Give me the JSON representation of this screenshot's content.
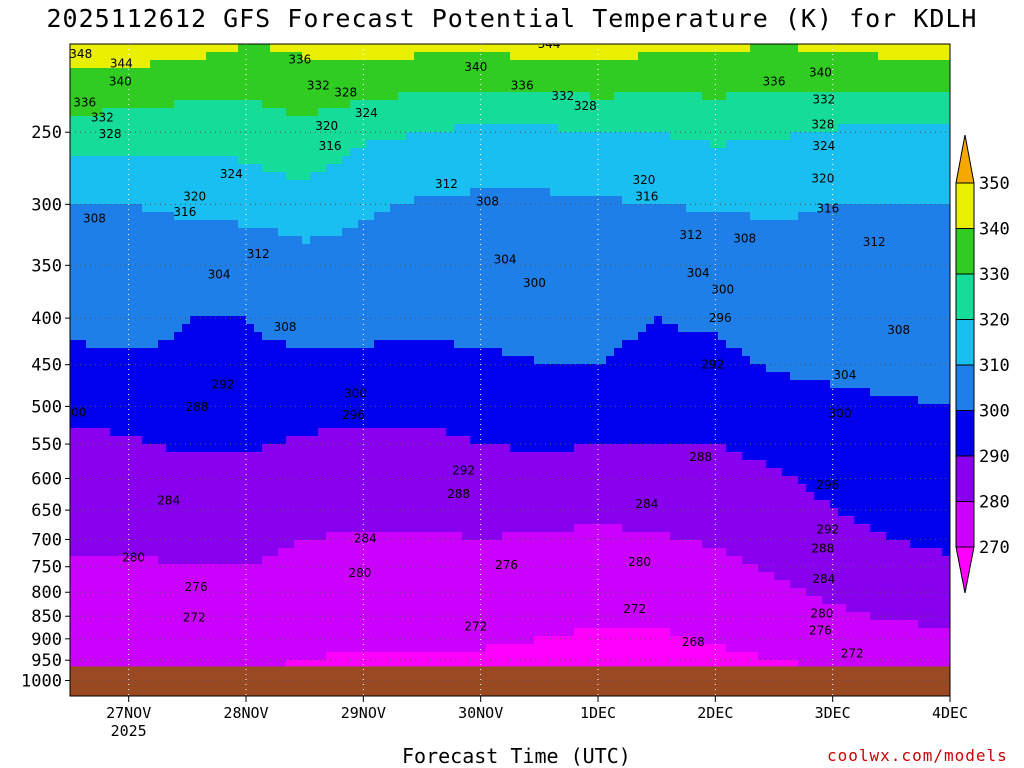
{
  "title": "2025112612 GFS Forecast Potential Temperature (K) for KDLH",
  "xlabel": "Forecast Time (UTC)",
  "credit": "coolwx.com/models",
  "chart_data": {
    "type": "heatmap",
    "title": "2025112612 GFS Forecast Potential Temperature (K) for KDLH",
    "xlabel": "Forecast Time (UTC)",
    "ylabel": "",
    "x_ticks": [
      "27NOV",
      "28NOV",
      "29NOV",
      "30NOV",
      "1DEC",
      "2DEC",
      "3DEC",
      "4DEC"
    ],
    "x_subtick": "2025",
    "xlim_hours": [
      12,
      192
    ],
    "x_tick_hours": [
      24,
      48,
      72,
      96,
      120,
      144,
      168,
      192
    ],
    "y_ticks": [
      250,
      300,
      350,
      400,
      450,
      500,
      550,
      600,
      650,
      700,
      750,
      800,
      850,
      900,
      950,
      1000
    ],
    "ylim": [
      200,
      1040
    ],
    "y_scale": "log",
    "grid": true,
    "colorbar": {
      "levels": [
        270,
        280,
        290,
        300,
        310,
        320,
        330,
        340,
        350
      ],
      "colors": [
        "#ff00ff",
        "#cc00ff",
        "#8800ee",
        "#0000ee",
        "#1f7fe8",
        "#18bff0",
        "#15dd99",
        "#30cc22",
        "#e8f000",
        "#f5a800"
      ]
    },
    "ground_color": "#9a4a22",
    "times": [
      12,
      24,
      36,
      48,
      60,
      72,
      84,
      96,
      108,
      120,
      132,
      144,
      156,
      168,
      180,
      192
    ],
    "pressure_levels": [
      1000,
      950,
      900,
      850,
      800,
      750,
      700,
      650,
      600,
      550,
      500,
      450,
      400,
      350,
      300,
      250,
      200
    ],
    "values": [
      [
        270,
        270,
        270,
        270,
        268,
        267,
        268,
        268,
        267,
        266,
        266,
        267,
        268,
        269,
        270,
        271
      ],
      [
        271,
        271,
        271,
        271,
        270,
        269,
        269,
        269,
        268,
        267,
        267,
        268,
        270,
        271,
        272,
        273
      ],
      [
        273,
        273,
        273,
        273,
        272,
        271,
        271,
        271,
        270,
        269,
        269,
        271,
        272,
        274,
        276,
        277
      ],
      [
        275,
        275,
        276,
        276,
        274,
        273,
        273,
        273,
        272,
        271,
        271,
        273,
        275,
        278,
        281,
        283
      ],
      [
        277,
        277,
        278,
        278,
        276,
        275,
        275,
        275,
        274,
        273,
        274,
        276,
        278,
        282,
        285,
        287
      ],
      [
        279,
        279,
        280,
        280,
        278,
        277,
        277,
        277,
        276,
        275,
        276,
        278,
        281,
        285,
        288,
        289
      ],
      [
        281,
        281,
        282,
        282,
        280,
        279,
        279,
        280,
        279,
        278,
        279,
        281,
        283,
        288,
        290,
        291
      ],
      [
        283,
        284,
        285,
        285,
        283,
        282,
        282,
        283,
        283,
        282,
        283,
        284,
        286,
        290,
        292,
        293
      ],
      [
        285,
        286,
        288,
        288,
        286,
        285,
        285,
        286,
        287,
        286,
        286,
        287,
        289,
        292,
        294,
        295
      ],
      [
        288,
        289,
        291,
        291,
        289,
        288,
        288,
        290,
        291,
        290,
        290,
        290,
        292,
        295,
        296,
        297
      ],
      [
        292,
        293,
        295,
        295,
        293,
        292,
        292,
        294,
        296,
        295,
        294,
        293,
        296,
        298,
        299,
        300
      ],
      [
        297,
        298,
        299,
        299,
        298,
        297,
        297,
        299,
        300,
        300,
        299,
        298,
        301,
        302,
        303,
        303
      ],
      [
        303,
        304,
        300,
        300,
        303,
        304,
        303,
        302,
        301,
        301,
        300,
        301,
        304,
        305,
        306,
        306
      ],
      [
        306,
        305,
        303,
        302,
        306,
        307,
        306,
        305,
        303,
        302,
        302,
        304,
        307,
        308,
        308,
        308
      ],
      [
        309,
        310,
        312,
        314,
        316,
        311,
        309,
        308,
        308,
        309,
        310,
        311,
        311,
        310,
        310,
        310
      ],
      [
        326,
        325,
        323,
        324,
        328,
        322,
        320,
        318,
        318,
        320,
        320,
        322,
        321,
        319,
        317,
        316
      ],
      [
        346,
        345,
        344,
        340,
        342,
        344,
        343,
        343,
        344,
        345,
        342,
        342,
        340,
        342,
        344,
        346
      ]
    ],
    "contour_labels": [
      {
        "t": 14.2,
        "p": 205,
        "v": 348
      },
      {
        "t": 22.5,
        "p": 210,
        "v": 344
      },
      {
        "t": 22.3,
        "p": 220,
        "v": 340
      },
      {
        "t": 15.0,
        "p": 232,
        "v": 336
      },
      {
        "t": 18.6,
        "p": 241,
        "v": 332
      },
      {
        "t": 20.2,
        "p": 251,
        "v": 328
      },
      {
        "t": 45.0,
        "p": 278,
        "v": 324
      },
      {
        "t": 37.5,
        "p": 294,
        "v": 320
      },
      {
        "t": 35.5,
        "p": 306,
        "v": 316
      },
      {
        "t": 17.0,
        "p": 311,
        "v": 308
      },
      {
        "t": 50.5,
        "p": 340,
        "v": 312
      },
      {
        "t": 42.5,
        "p": 358,
        "v": 304
      },
      {
        "t": 56.0,
        "p": 409,
        "v": 308
      },
      {
        "t": 43.3,
        "p": 473,
        "v": 292
      },
      {
        "t": 13.0,
        "p": 508,
        "v": 300
      },
      {
        "t": 38.0,
        "p": 501,
        "v": 288
      },
      {
        "t": 32.2,
        "p": 634,
        "v": 284
      },
      {
        "t": 25.0,
        "p": 733,
        "v": 280
      },
      {
        "t": 37.8,
        "p": 789,
        "v": 276
      },
      {
        "t": 37.4,
        "p": 853,
        "v": 272
      },
      {
        "t": 59.0,
        "p": 208,
        "v": 336
      },
      {
        "t": 62.8,
        "p": 222,
        "v": 332
      },
      {
        "t": 68.4,
        "p": 226,
        "v": 328
      },
      {
        "t": 72.6,
        "p": 238,
        "v": 324
      },
      {
        "t": 64.5,
        "p": 246,
        "v": 320
      },
      {
        "t": 65.2,
        "p": 259,
        "v": 316
      },
      {
        "t": 89.0,
        "p": 285,
        "v": 312
      },
      {
        "t": 97.4,
        "p": 298,
        "v": 308
      },
      {
        "t": 101.0,
        "p": 345,
        "v": 304
      },
      {
        "t": 107.0,
        "p": 366,
        "v": 300
      },
      {
        "t": 95.0,
        "p": 212,
        "v": 340
      },
      {
        "t": 110.0,
        "p": 200,
        "v": 344
      },
      {
        "t": 104.5,
        "p": 222,
        "v": 336
      },
      {
        "t": 112.8,
        "p": 228,
        "v": 332
      },
      {
        "t": 117.4,
        "p": 234,
        "v": 328
      },
      {
        "t": 70.4,
        "p": 484,
        "v": 300
      },
      {
        "t": 70.0,
        "p": 511,
        "v": 296
      },
      {
        "t": 92.5,
        "p": 588,
        "v": 292
      },
      {
        "t": 91.5,
        "p": 624,
        "v": 288
      },
      {
        "t": 72.4,
        "p": 698,
        "v": 284
      },
      {
        "t": 71.3,
        "p": 762,
        "v": 280
      },
      {
        "t": 95.0,
        "p": 872,
        "v": 272
      },
      {
        "t": 101.3,
        "p": 747,
        "v": 276
      },
      {
        "t": 129.4,
        "p": 282,
        "v": 320
      },
      {
        "t": 130.0,
        "p": 294,
        "v": 316
      },
      {
        "t": 139.0,
        "p": 324,
        "v": 312
      },
      {
        "t": 140.5,
        "p": 357,
        "v": 304
      },
      {
        "t": 145.5,
        "p": 372,
        "v": 300
      },
      {
        "t": 145.0,
        "p": 400,
        "v": 296
      },
      {
        "t": 143.5,
        "p": 450,
        "v": 292
      },
      {
        "t": 141.0,
        "p": 568,
        "v": 288
      },
      {
        "t": 130.0,
        "p": 640,
        "v": 284
      },
      {
        "t": 128.5,
        "p": 741,
        "v": 280
      },
      {
        "t": 127.5,
        "p": 835,
        "v": 272
      },
      {
        "t": 139.5,
        "p": 907,
        "v": 268
      },
      {
        "t": 156.0,
        "p": 220,
        "v": 336
      },
      {
        "t": 165.5,
        "p": 215,
        "v": 340
      },
      {
        "t": 166.2,
        "p": 230,
        "v": 332
      },
      {
        "t": 166.0,
        "p": 245,
        "v": 328
      },
      {
        "t": 166.2,
        "p": 259,
        "v": 324
      },
      {
        "t": 166.0,
        "p": 281,
        "v": 320
      },
      {
        "t": 167.0,
        "p": 303,
        "v": 316
      },
      {
        "t": 150.0,
        "p": 327,
        "v": 308
      },
      {
        "t": 176.5,
        "p": 330,
        "v": 312
      },
      {
        "t": 181.5,
        "p": 412,
        "v": 308
      },
      {
        "t": 170.5,
        "p": 462,
        "v": 304
      },
      {
        "t": 169.5,
        "p": 509,
        "v": 300
      },
      {
        "t": 167.0,
        "p": 610,
        "v": 296
      },
      {
        "t": 167.0,
        "p": 683,
        "v": 292
      },
      {
        "t": 166.0,
        "p": 716,
        "v": 288
      },
      {
        "t": 166.2,
        "p": 774,
        "v": 284
      },
      {
        "t": 165.8,
        "p": 844,
        "v": 280
      },
      {
        "t": 165.5,
        "p": 881,
        "v": 276
      },
      {
        "t": 172.0,
        "p": 934,
        "v": 272
      }
    ]
  }
}
